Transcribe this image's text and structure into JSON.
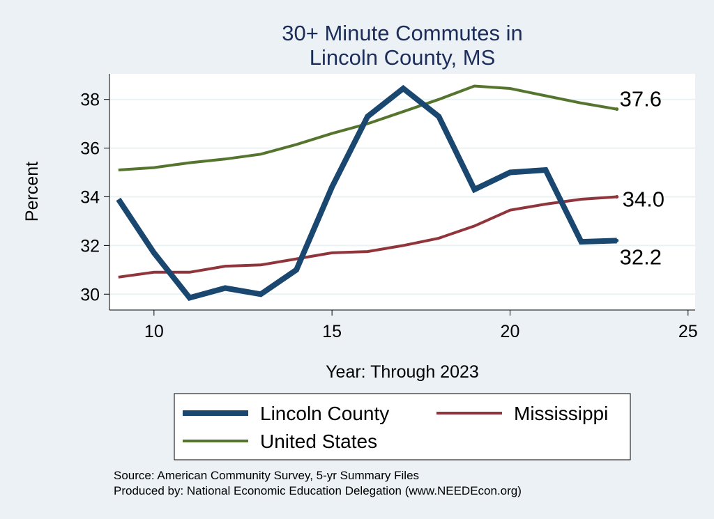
{
  "chart_data": {
    "type": "line",
    "title_lines": [
      "30+ Minute Commutes in",
      "Lincoln County, MS"
    ],
    "xlabel": "Year: Through 2023",
    "ylabel": "Percent",
    "xlim": [
      8.75,
      25.2
    ],
    "ylim": [
      29.35,
      39.05
    ],
    "x_ticks": [
      10,
      15,
      20,
      25
    ],
    "y_ticks": [
      30,
      32,
      34,
      36,
      38
    ],
    "grid": true,
    "legend_position": "bottom",
    "series": [
      {
        "name": "Lincoln County",
        "color": "#1a476f",
        "x": [
          9,
          10,
          11,
          12,
          13,
          14,
          15,
          16,
          17,
          18,
          19,
          20,
          21,
          22,
          23
        ],
        "y": [
          33.9,
          31.7,
          29.85,
          30.25,
          30.0,
          31.0,
          34.4,
          37.3,
          38.45,
          37.3,
          34.3,
          35.0,
          35.1,
          32.15,
          32.2
        ],
        "end_label": "32.2"
      },
      {
        "name": "Mississippi",
        "color": "#90353b",
        "x": [
          9,
          10,
          11,
          12,
          13,
          14,
          15,
          16,
          17,
          18,
          19,
          20,
          21,
          22,
          23
        ],
        "y": [
          30.7,
          30.9,
          30.9,
          31.15,
          31.2,
          31.45,
          31.7,
          31.75,
          32.0,
          32.3,
          32.8,
          33.45,
          33.7,
          33.9,
          34.0
        ],
        "end_label": "34.0"
      },
      {
        "name": "United States",
        "color": "#55752f",
        "x": [
          9,
          10,
          11,
          12,
          13,
          14,
          15,
          16,
          17,
          18,
          19,
          20,
          21,
          22,
          23
        ],
        "y": [
          35.1,
          35.2,
          35.4,
          35.55,
          35.75,
          36.15,
          36.6,
          37.0,
          37.5,
          38.0,
          38.55,
          38.45,
          38.15,
          37.85,
          37.6
        ],
        "end_label": "37.6"
      }
    ]
  },
  "footer": {
    "source": "Source: American Community Survey, 5-yr Summary Files",
    "produced_by": "Produced by: National Economic Education Delegation (www.NEEDEcon.org)"
  }
}
